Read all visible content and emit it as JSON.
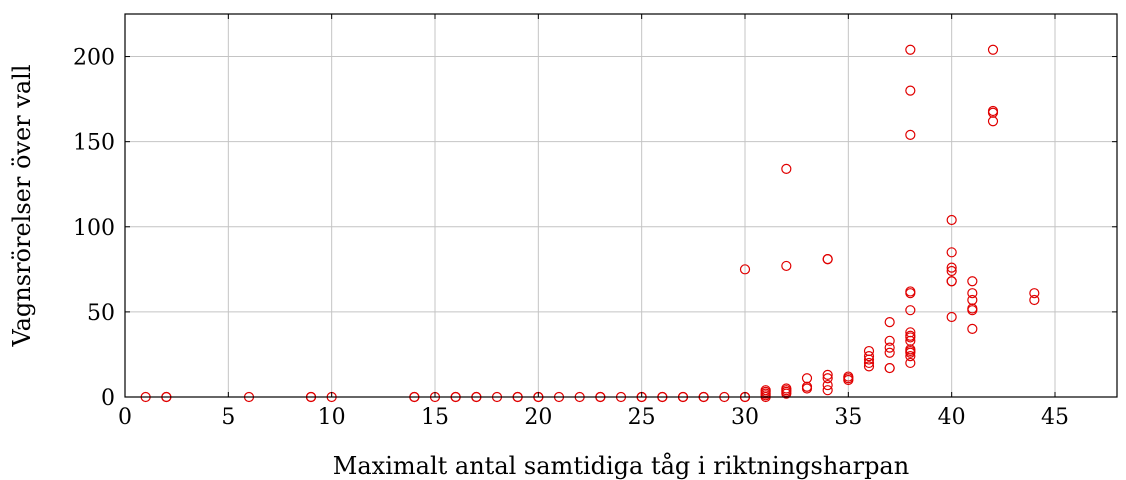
{
  "chart_data": {
    "type": "scatter",
    "title": "",
    "xlabel": "Maximalt antal samtidiga tåg i riktningsharpan",
    "ylabel": "Vagnsrörelser över vall",
    "xlim": [
      0,
      48
    ],
    "ylim": [
      0,
      225
    ],
    "xticks": [
      0,
      5,
      10,
      15,
      20,
      25,
      30,
      35,
      40,
      45
    ],
    "yticks": [
      0,
      50,
      100,
      150,
      200
    ],
    "grid": true,
    "marker": "circle-open",
    "color": "#e00000",
    "series": [
      {
        "x": [
          1,
          2,
          2,
          6,
          9,
          9,
          10,
          14,
          14,
          15,
          16,
          16,
          17,
          17,
          18,
          19,
          19,
          20,
          20,
          21,
          22,
          23,
          23,
          24,
          25,
          25,
          26,
          26,
          27,
          27,
          28,
          28,
          29,
          30,
          30,
          30,
          31,
          31,
          31,
          31,
          31,
          32,
          32,
          32,
          32,
          32,
          32,
          33,
          33,
          33,
          34,
          34,
          34,
          34,
          34,
          34,
          35,
          35,
          35,
          36,
          36,
          36,
          36,
          36,
          37,
          37,
          37,
          37,
          37,
          37,
          38,
          38,
          38,
          38,
          38,
          38,
          38,
          38,
          38,
          38,
          38,
          38,
          38,
          38,
          40,
          40,
          40,
          40,
          40,
          40,
          40,
          41,
          41,
          41,
          41,
          41,
          41,
          42,
          42,
          42,
          42,
          44,
          44
        ],
        "y": [
          0,
          0,
          0,
          0,
          0,
          0,
          0,
          0,
          0,
          0,
          0,
          0,
          0,
          0,
          0,
          0,
          0,
          0,
          0,
          0,
          0,
          0,
          0,
          0,
          0,
          0,
          0,
          0,
          0,
          0,
          0,
          0,
          0,
          0,
          0,
          75,
          1,
          2,
          3,
          4,
          0,
          2,
          3,
          4,
          5,
          77,
          134,
          5,
          6,
          11,
          4,
          7,
          11,
          13,
          81,
          81,
          10,
          11,
          12,
          18,
          20,
          22,
          24,
          27,
          17,
          17,
          26,
          29,
          33,
          44,
          20,
          24,
          26,
          27,
          28,
          33,
          35,
          36,
          38,
          51,
          61,
          62,
          154,
          180,
          47,
          68,
          68,
          74,
          76,
          85,
          104,
          40,
          51,
          52,
          57,
          61,
          68,
          162,
          167,
          168,
          204,
          57,
          61
        ]
      }
    ],
    "extra_points": {
      "x": [
        38
      ],
      "y": [
        204
      ]
    }
  }
}
